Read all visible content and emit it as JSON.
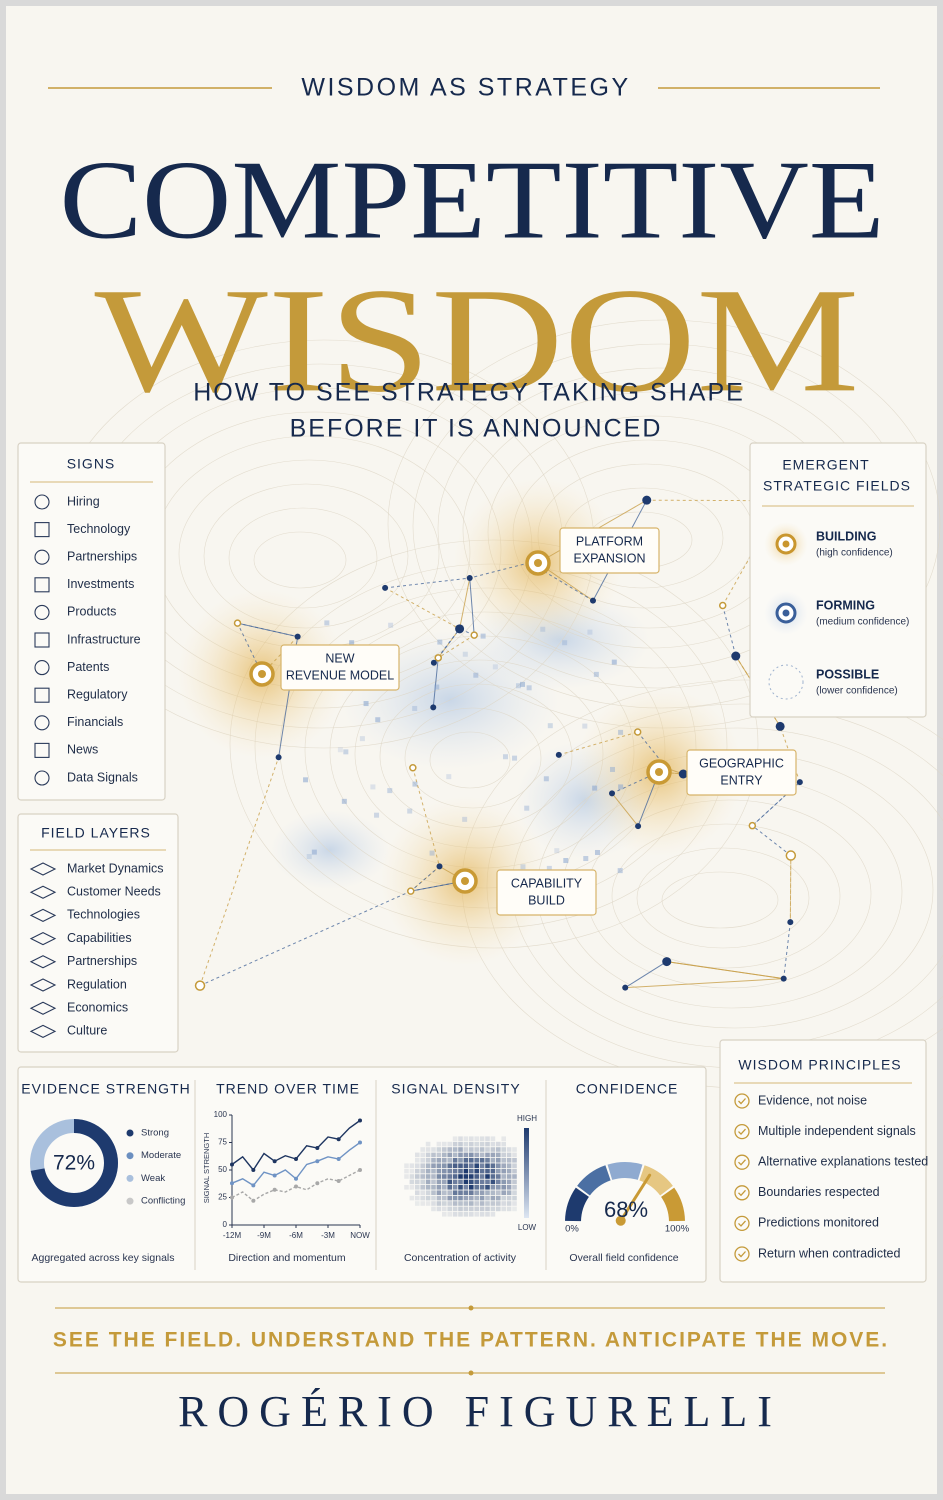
{
  "header": {
    "kicker": "WISDOM AS STRATEGY",
    "title_line1": "COMPETITIVE",
    "title_line2": "WISDOM",
    "subtitle_line1": "HOW TO SEE STRATEGY TAKING SHAPE",
    "subtitle_line2": "BEFORE IT IS ANNOUNCED"
  },
  "signs": {
    "title": "SIGNS",
    "items": [
      "Hiring",
      "Technology",
      "Partnerships",
      "Investments",
      "Products",
      "Infrastructure",
      "Patents",
      "Regulatory",
      "Financials",
      "News",
      "Data Signals"
    ]
  },
  "field_layers": {
    "title": "FIELD LAYERS",
    "items": [
      "Market Dynamics",
      "Customer Needs",
      "Technologies",
      "Capabilities",
      "Partnerships",
      "Regulation",
      "Economics",
      "Culture"
    ]
  },
  "map": {
    "nodes": [
      {
        "lines": [
          "PLATFORM",
          "EXPANSION"
        ]
      },
      {
        "lines": [
          "NEW",
          "REVENUE MODEL"
        ]
      },
      {
        "lines": [
          "GEOGRAPHIC",
          "ENTRY"
        ]
      },
      {
        "lines": [
          "CAPABILITY",
          "BUILD"
        ]
      }
    ]
  },
  "legend": {
    "title_lines": [
      "EMERGENT",
      "STRATEGIC FIELDS"
    ],
    "items": [
      {
        "label": "BUILDING",
        "note": "(high confidence)",
        "color": "#c9962e"
      },
      {
        "label": "FORMING",
        "note": "(medium confidence)",
        "color": "#3a5f9a"
      },
      {
        "label": "POSSIBLE",
        "note": "(lower confidence)",
        "color": "#9fb3cf"
      }
    ]
  },
  "evidence": {
    "title": "EVIDENCE STRENGTH",
    "value": 72,
    "value_label": "72%",
    "legend": [
      {
        "name": "Strong",
        "color": "#1e3a6e"
      },
      {
        "name": "Moderate",
        "color": "#6b8fc0"
      },
      {
        "name": "Weak",
        "color": "#a9c0dd"
      },
      {
        "name": "Conflicting",
        "color": "#c8c8c8"
      }
    ],
    "caption": "Aggregated across key signals"
  },
  "trend": {
    "title": "TREND OVER TIME",
    "ylabel": "SIGNAL STRENGTH",
    "ylim": [
      0,
      100
    ],
    "yticks": [
      0,
      25,
      50,
      75,
      100
    ],
    "xlim": [
      -12,
      0
    ],
    "xticks": [
      {
        "value": -12,
        "label": "-12M"
      },
      {
        "value": -9,
        "label": "-9M"
      },
      {
        "value": -6,
        "label": "-6M"
      },
      {
        "value": -3,
        "label": "-3M"
      },
      {
        "value": 0,
        "label": "NOW"
      }
    ],
    "x": [
      -12,
      -11,
      -10,
      -9,
      -8,
      -7,
      -6,
      -5,
      -4,
      -3,
      -2,
      -1,
      0
    ],
    "series": [
      {
        "color": "#1e3560",
        "values": [
          55,
          62,
          50,
          65,
          58,
          63,
          60,
          72,
          70,
          80,
          78,
          88,
          95
        ]
      },
      {
        "color": "#6f93c4",
        "values": [
          38,
          42,
          36,
          48,
          45,
          50,
          42,
          55,
          58,
          62,
          60,
          68,
          75
        ]
      },
      {
        "color": "#a8a8a8",
        "values": [
          25,
          30,
          22,
          28,
          32,
          30,
          35,
          32,
          38,
          42,
          40,
          45,
          50
        ]
      }
    ],
    "caption": "Direction and momentum"
  },
  "density": {
    "title": "SIGNAL DENSITY",
    "high": "HIGH",
    "low": "LOW",
    "caption": "Concentration of activity"
  },
  "confidence": {
    "title": "CONFIDENCE",
    "value": 68,
    "value_label": "68%",
    "lim": [
      0,
      100
    ],
    "ticks": [
      {
        "value": 0,
        "label": "0%"
      },
      {
        "value": 100,
        "label": "100%"
      }
    ],
    "caption": "Overall field confidence"
  },
  "principles": {
    "title": "WISDOM PRINCIPLES",
    "items": [
      "Evidence, not noise",
      "Multiple independent signals",
      "Alternative explanations tested",
      "Boundaries respected",
      "Predictions monitored",
      "Return when contradicted"
    ]
  },
  "footer": {
    "tagline": "SEE THE FIELD. UNDERSTAND THE PATTERN. ANTICIPATE THE MOVE.",
    "author": "ROGÉRIO FIGURELLI"
  }
}
